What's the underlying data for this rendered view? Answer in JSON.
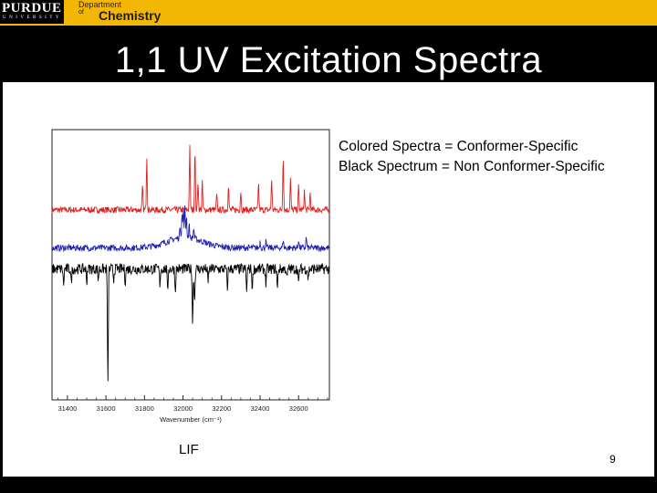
{
  "header": {
    "logo_text": "PURDUE",
    "logo_subtext": "UNIVERSITY",
    "department_line1": "Department",
    "department_line2": "of",
    "department_line3": "Chemistry"
  },
  "slide": {
    "title": "1,1 UV Excitation Spectra",
    "note_line1": "Colored Spectra = Conformer-Specific",
    "note_line2": "Black Spectrum = Non Conformer-Specific",
    "caption": "LIF",
    "page_number": "9"
  },
  "chart_data": {
    "type": "line",
    "xlabel": "Wavenumber (cm⁻¹)",
    "ylabel": "",
    "xlim": [
      31320,
      32760
    ],
    "x_ticks": [
      31400,
      31600,
      31800,
      32000,
      32200,
      32400,
      32600
    ],
    "x_tick_labels": [
      "31400",
      "31600",
      "31800",
      "32000",
      "32200",
      "32400",
      "32600"
    ],
    "grid": false,
    "series": [
      {
        "color": "#e02020",
        "baseline": 4.4,
        "noise": 0.15,
        "peaks": [
          [
            31790,
            1.1
          ],
          [
            31812,
            2.6
          ],
          [
            32035,
            3.0
          ],
          [
            32062,
            2.9
          ],
          [
            32078,
            1.4
          ],
          [
            32100,
            1.3
          ],
          [
            32175,
            0.7
          ],
          [
            32236,
            1.2
          ],
          [
            32300,
            0.9
          ],
          [
            32392,
            1.3
          ],
          [
            32460,
            1.5
          ],
          [
            32520,
            2.6
          ],
          [
            32558,
            1.5
          ],
          [
            32600,
            1.1
          ],
          [
            32630,
            0.9
          ],
          [
            32660,
            0.8
          ]
        ]
      },
      {
        "color": "#2020b0",
        "baseline": 2.6,
        "noise": 0.15,
        "hump": [
          32010,
          90,
          0.5
        ],
        "peaks": [
          [
            31985,
            0.6
          ],
          [
            31995,
            1.1
          ],
          [
            32002,
            1.3
          ],
          [
            32010,
            1.4
          ],
          [
            32018,
            1.0
          ],
          [
            32032,
            0.6
          ],
          [
            32056,
            0.5
          ],
          [
            32400,
            0.3
          ],
          [
            32430,
            0.3
          ],
          [
            32520,
            0.4
          ],
          [
            32600,
            0.4
          ],
          [
            32640,
            0.5
          ]
        ]
      },
      {
        "color": "#000000",
        "baseline": 1.6,
        "noise": 0.25,
        "peaks": [
          [
            31380,
            -0.8
          ],
          [
            31420,
            -0.7
          ],
          [
            31500,
            -0.6
          ],
          [
            31560,
            -0.5
          ],
          [
            31610,
            -5.6
          ],
          [
            31640,
            -0.5
          ],
          [
            31700,
            -0.6
          ],
          [
            31880,
            -0.7
          ],
          [
            31920,
            -1.1
          ],
          [
            31960,
            -1.1
          ],
          [
            32050,
            -2.6
          ],
          [
            32060,
            -1.6
          ],
          [
            32130,
            -0.7
          ],
          [
            32230,
            -1.0
          ],
          [
            32330,
            -1.1
          ],
          [
            32360,
            -1.0
          ],
          [
            32430,
            -0.7
          ],
          [
            32490,
            -1.0
          ],
          [
            32540,
            -0.5
          ],
          [
            32600,
            -0.8
          ],
          [
            32650,
            -0.5
          ]
        ]
      }
    ],
    "ylim": [
      -4.6,
      8.2
    ]
  }
}
